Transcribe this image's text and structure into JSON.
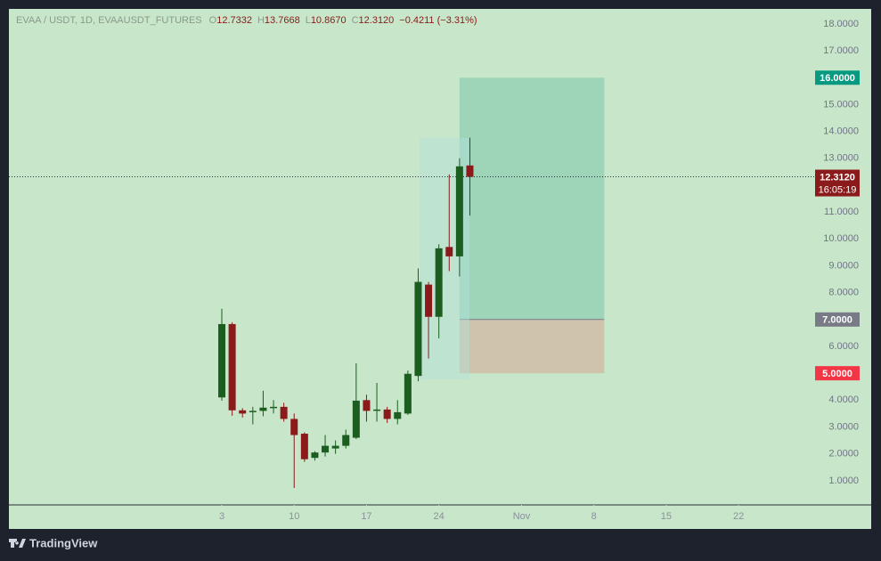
{
  "header": {
    "symbol": "EVAA / USDT, 1D, EVAAUSDT_FUTURES",
    "fields": [
      {
        "key": "O",
        "value": "12.7332"
      },
      {
        "key": "H",
        "value": "13.7668"
      },
      {
        "key": "L",
        "value": "10.8670"
      },
      {
        "key": "C",
        "value": "12.3120"
      }
    ],
    "change": "−0.4211 (−3.31%)"
  },
  "chart_data": {
    "type": "candlestick",
    "x": [
      3,
      4,
      5,
      6,
      7,
      8,
      9,
      10,
      11,
      12,
      13,
      14,
      15,
      16,
      17,
      18,
      19,
      20,
      21,
      22,
      23,
      24,
      25,
      26,
      27
    ],
    "open": [
      4.1,
      6.83,
      3.62,
      3.55,
      3.6,
      3.7,
      3.75,
      3.3,
      2.75,
      1.85,
      2.05,
      2.2,
      2.3,
      2.6,
      4.0,
      3.6,
      3.65,
      3.3,
      3.5,
      4.9,
      8.3,
      7.1,
      9.7,
      9.35,
      12.7332
    ],
    "high": [
      7.4,
      6.9,
      3.7,
      3.75,
      4.35,
      4.0,
      3.9,
      3.5,
      2.8,
      2.1,
      2.7,
      2.5,
      2.9,
      5.37,
      4.2,
      4.64,
      3.75,
      4.0,
      5.1,
      8.9,
      8.4,
      9.8,
      12.4,
      13.0,
      13.7668
    ],
    "low": [
      3.98,
      3.42,
      3.35,
      3.1,
      3.4,
      3.5,
      3.2,
      0.73,
      1.7,
      1.75,
      1.9,
      2.0,
      2.2,
      2.55,
      3.2,
      3.2,
      3.15,
      3.1,
      3.45,
      4.7,
      5.55,
      6.3,
      8.8,
      8.6,
      10.867
    ],
    "close": [
      6.83,
      3.62,
      3.5,
      3.6,
      3.72,
      3.75,
      3.3,
      2.7,
      1.8,
      2.05,
      2.3,
      2.3,
      2.7,
      3.98,
      3.6,
      3.65,
      3.3,
      3.55,
      4.98,
      8.4,
      7.1,
      9.65,
      9.35,
      12.7,
      12.312
    ],
    "up_color": "#1b5e20",
    "down_color": "#8b1a1a",
    "xlim": [
      -17.6,
      60.4
    ],
    "xticks": [
      3,
      10,
      17,
      24,
      {
        "value": 32,
        "label": "Nov"
      },
      {
        "value": 39,
        "label": "8"
      },
      {
        "value": 46,
        "label": "15"
      },
      {
        "value": 53,
        "label": "22"
      }
    ],
    "ylim": [
      0.1,
      18.56
    ],
    "yticks": [
      {
        "value": 18,
        "label": "18.0000"
      },
      {
        "value": 17,
        "label": "17.0000"
      },
      {
        "value": 15,
        "label": "15.0000"
      },
      {
        "value": 14,
        "label": "14.0000"
      },
      {
        "value": 13,
        "label": "13.0000"
      },
      {
        "value": 11,
        "label": "11.0000"
      },
      {
        "value": 10,
        "label": "10.0000"
      },
      {
        "value": 9,
        "label": "9.0000"
      },
      {
        "value": 8,
        "label": "8.0000"
      },
      {
        "value": 6,
        "label": "6.0000"
      },
      {
        "value": 4,
        "label": "4.0000"
      },
      {
        "value": 3,
        "label": "3.0000"
      },
      {
        "value": 2,
        "label": "2.0000"
      },
      {
        "value": 1,
        "label": "1.0000"
      }
    ],
    "position": {
      "x": [
        26,
        40
      ],
      "target": {
        "value": 16,
        "label": "16.0000",
        "color": "#089981"
      },
      "entry": {
        "value": 7,
        "label": "7.0000",
        "color": "#787b86"
      },
      "stop": {
        "value": 5,
        "label": "5.0000",
        "color": "#f23645"
      }
    },
    "last_price": {
      "value": 12.312,
      "label": "12.3120",
      "countdown": "16:05:19"
    }
  },
  "brand": "TradingView"
}
